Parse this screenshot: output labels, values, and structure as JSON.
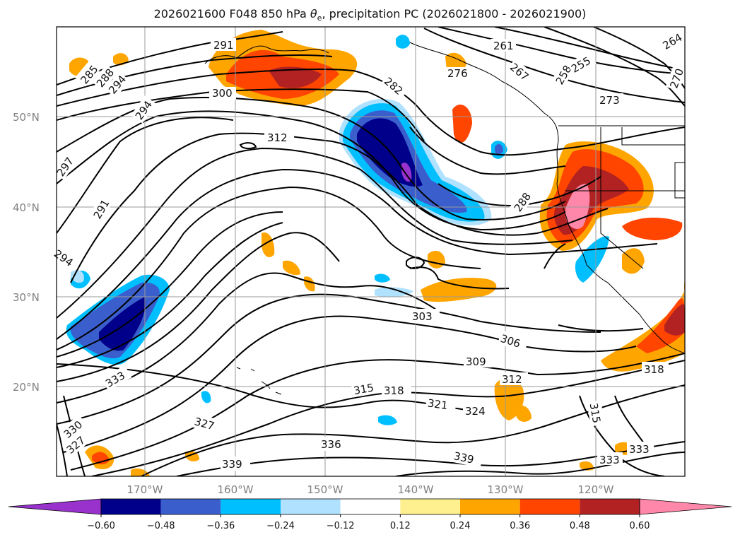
{
  "figure": {
    "title_prefix": "2026021600 F048 850 hPa ",
    "title_symbol": "θ",
    "title_symbol_sub": "e",
    "title_suffix": ", precipitation PC (2026021800 - 2026021900)"
  },
  "axes": {
    "lat_labels": [
      "50°N",
      "40°N",
      "30°N",
      "20°N"
    ],
    "lon_labels": [
      "170°W",
      "160°W",
      "150°W",
      "140°W",
      "130°W",
      "120°W"
    ]
  },
  "colorbar": {
    "ticks": [
      "−0.60",
      "−0.48",
      "−0.36",
      "−0.24",
      "−0.12",
      "0.12",
      "0.24",
      "0.36",
      "0.48",
      "0.60"
    ],
    "colors": [
      "#9932cc",
      "#00008b",
      "#3a5fcd",
      "#00bfff",
      "#b0e2ff",
      "#ffffff",
      "#fff08f",
      "#ffa500",
      "#ff4500",
      "#b22222",
      "#ff88aa"
    ]
  },
  "contour_labels": [
    "291",
    "285",
    "288",
    "294",
    "300",
    "282",
    "261",
    "276",
    "267",
    "258",
    "255",
    "264",
    "270",
    "273",
    "294",
    "312",
    "297",
    "291",
    "288",
    "294",
    "303",
    "306",
    "309",
    "312",
    "315",
    "318",
    "321",
    "324",
    "327",
    "333",
    "330",
    "327",
    "336",
    "339",
    "318",
    "315",
    "333",
    "339",
    "333"
  ]
}
